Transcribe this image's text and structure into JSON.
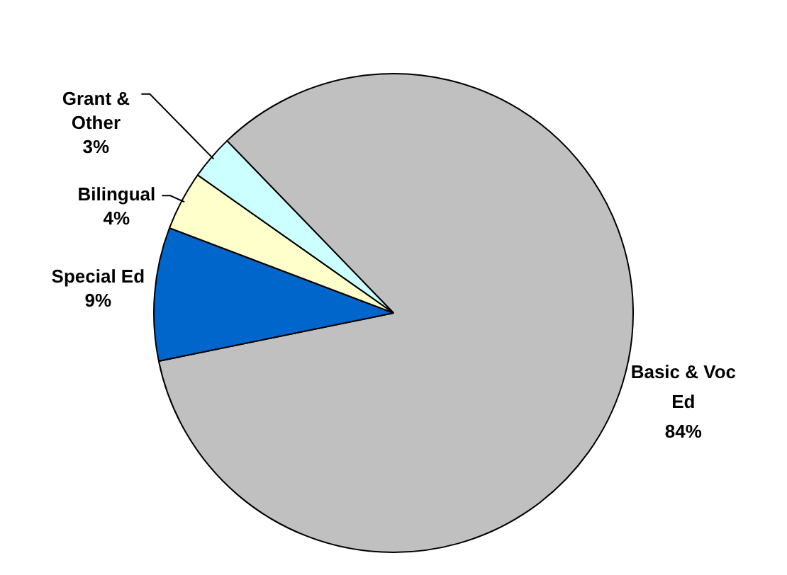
{
  "chart_data": {
    "type": "pie",
    "categories": [
      "Basic & Voc Ed",
      "Special Ed",
      "Bilingual",
      "Grant & Other"
    ],
    "values": [
      84,
      9,
      4,
      3
    ],
    "colors": [
      "#c0c0c0",
      "#0066cc",
      "#ffffcc",
      "#ccffff"
    ],
    "value_labels": [
      "84%",
      "9%",
      "4%",
      "3%"
    ],
    "legend": false
  }
}
